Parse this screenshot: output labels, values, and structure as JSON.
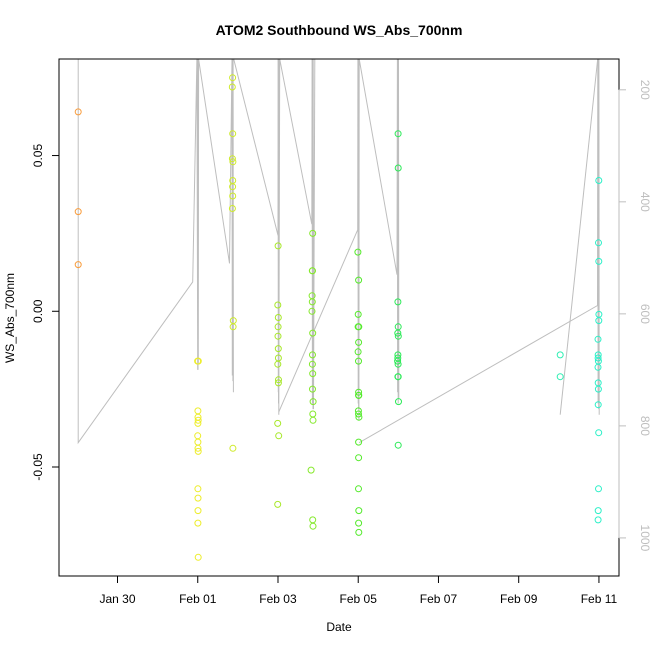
{
  "chart_data": {
    "type": "scatter",
    "title": "ATOM2 Southbound WS_Abs_700nm",
    "xlabel": "Date",
    "ylabel": "WS_Abs_700nm",
    "x_ticks": [
      {
        "date": "2017-01-30",
        "label": "Jan 30"
      },
      {
        "date": "2017-02-01",
        "label": "Feb 01"
      },
      {
        "date": "2017-02-03",
        "label": "Feb 03"
      },
      {
        "date": "2017-02-05",
        "label": "Feb 05"
      },
      {
        "date": "2017-02-07",
        "label": "Feb 07"
      },
      {
        "date": "2017-02-09",
        "label": "Feb 09"
      },
      {
        "date": "2017-02-11",
        "label": "Feb 11"
      }
    ],
    "xlim": [
      "2017-01-28T13:00",
      "2017-02-11T12:00"
    ],
    "ylim": [
      -0.085,
      0.081
    ],
    "y_ticks": [
      {
        "value": -0.05,
        "label": "-0.05"
      },
      {
        "value": 0.0,
        "label": "0.00"
      },
      {
        "value": 0.05,
        "label": "0.05"
      }
    ],
    "y2_ticks": [
      {
        "value": 200,
        "label": "200"
      },
      {
        "value": 400,
        "label": "400"
      },
      {
        "value": 600,
        "label": "600"
      },
      {
        "value": 800,
        "label": "800"
      },
      {
        "value": 1000,
        "label": "1000"
      }
    ],
    "y2lim": [
      1068,
      145
    ],
    "y2_color": "#bebebe",
    "grid": false,
    "points": [
      {
        "x": "2017-01-29T00:30",
        "y": 0.064
      },
      {
        "x": "2017-01-29T00:30",
        "y": 0.032
      },
      {
        "x": "2017-01-29T00:30",
        "y": 0.015
      },
      {
        "x": "2017-01-31T23:55",
        "y": -0.016
      },
      {
        "x": "2017-02-01T00:05",
        "y": -0.032
      },
      {
        "x": "2017-02-01T00:10",
        "y": -0.034
      },
      {
        "x": "2017-02-01T00:15",
        "y": -0.035
      },
      {
        "x": "2017-02-01T00:05",
        "y": -0.036
      },
      {
        "x": "2017-02-01T00:00",
        "y": -0.04
      },
      {
        "x": "2017-02-01T00:05",
        "y": -0.042
      },
      {
        "x": "2017-02-01T00:10",
        "y": -0.044
      },
      {
        "x": "2017-02-01T00:15",
        "y": -0.045
      },
      {
        "x": "2017-02-01T00:05",
        "y": -0.057
      },
      {
        "x": "2017-02-01T00:10",
        "y": -0.06
      },
      {
        "x": "2017-02-01T00:10",
        "y": -0.064
      },
      {
        "x": "2017-02-01T00:05",
        "y": -0.068
      },
      {
        "x": "2017-02-01T00:15",
        "y": -0.079
      },
      {
        "x": "2017-02-01T00:20",
        "y": -0.016
      },
      {
        "x": "2017-02-01T20:50",
        "y": 0.075
      },
      {
        "x": "2017-02-01T20:40",
        "y": 0.072
      },
      {
        "x": "2017-02-01T20:55",
        "y": 0.057
      },
      {
        "x": "2017-02-01T20:45",
        "y": 0.049
      },
      {
        "x": "2017-02-01T21:00",
        "y": 0.048
      },
      {
        "x": "2017-02-01T20:55",
        "y": 0.042
      },
      {
        "x": "2017-02-01T20:50",
        "y": 0.04
      },
      {
        "x": "2017-02-01T20:55",
        "y": 0.037
      },
      {
        "x": "2017-02-01T20:45",
        "y": 0.033
      },
      {
        "x": "2017-02-01T21:15",
        "y": -0.003
      },
      {
        "x": "2017-02-01T21:10",
        "y": -0.005
      },
      {
        "x": "2017-02-01T21:00",
        "y": -0.044
      },
      {
        "x": "2017-02-03T00:05",
        "y": 0.021
      },
      {
        "x": "2017-02-02T23:55",
        "y": 0.002
      },
      {
        "x": "2017-02-03T00:10",
        "y": -0.002
      },
      {
        "x": "2017-02-03T00:05",
        "y": -0.005
      },
      {
        "x": "2017-02-03T00:00",
        "y": -0.008
      },
      {
        "x": "2017-02-03T00:10",
        "y": -0.012
      },
      {
        "x": "2017-02-03T00:15",
        "y": -0.015
      },
      {
        "x": "2017-02-02T23:55",
        "y": -0.017
      },
      {
        "x": "2017-02-03T00:20",
        "y": -0.022
      },
      {
        "x": "2017-02-03T00:15",
        "y": -0.023
      },
      {
        "x": "2017-02-02T23:50",
        "y": -0.036
      },
      {
        "x": "2017-02-03T00:25",
        "y": -0.04
      },
      {
        "x": "2017-02-02T23:50",
        "y": -0.062
      },
      {
        "x": "2017-02-03T20:45",
        "y": 0.025
      },
      {
        "x": "2017-02-03T20:30",
        "y": 0.013
      },
      {
        "x": "2017-02-03T20:40",
        "y": 0.013
      },
      {
        "x": "2017-02-03T20:25",
        "y": 0.005
      },
      {
        "x": "2017-02-03T20:30",
        "y": 0.003
      },
      {
        "x": "2017-02-03T20:20",
        "y": 0.0
      },
      {
        "x": "2017-02-03T20:45",
        "y": -0.007
      },
      {
        "x": "2017-02-03T20:40",
        "y": -0.014
      },
      {
        "x": "2017-02-03T20:35",
        "y": -0.017
      },
      {
        "x": "2017-02-03T20:45",
        "y": -0.02
      },
      {
        "x": "2017-02-03T20:40",
        "y": -0.025
      },
      {
        "x": "2017-02-03T21:00",
        "y": -0.029
      },
      {
        "x": "2017-02-03T20:50",
        "y": -0.033
      },
      {
        "x": "2017-02-03T20:55",
        "y": -0.035
      },
      {
        "x": "2017-02-03T19:50",
        "y": -0.051
      },
      {
        "x": "2017-02-03T20:45",
        "y": -0.067
      },
      {
        "x": "2017-02-03T20:55",
        "y": -0.069
      },
      {
        "x": "2017-02-04T23:50",
        "y": 0.019
      },
      {
        "x": "2017-02-05T00:15",
        "y": 0.01
      },
      {
        "x": "2017-02-05T00:00",
        "y": -0.001
      },
      {
        "x": "2017-02-05T00:20",
        "y": -0.005
      },
      {
        "x": "2017-02-04T23:55",
        "y": -0.005
      },
      {
        "x": "2017-02-05T00:15",
        "y": -0.01
      },
      {
        "x": "2017-02-04T23:55",
        "y": -0.013
      },
      {
        "x": "2017-02-05T00:10",
        "y": -0.016
      },
      {
        "x": "2017-02-05T00:15",
        "y": -0.026
      },
      {
        "x": "2017-02-05T00:10",
        "y": -0.027
      },
      {
        "x": "2017-02-05T00:20",
        "y": -0.027
      },
      {
        "x": "2017-02-05T00:05",
        "y": -0.032
      },
      {
        "x": "2017-02-05T00:10",
        "y": -0.033
      },
      {
        "x": "2017-02-05T00:25",
        "y": -0.034
      },
      {
        "x": "2017-02-05T00:15",
        "y": -0.042
      },
      {
        "x": "2017-02-05T00:15",
        "y": -0.047
      },
      {
        "x": "2017-02-05T00:10",
        "y": -0.057
      },
      {
        "x": "2017-02-05T00:20",
        "y": -0.064
      },
      {
        "x": "2017-02-05T00:15",
        "y": -0.068
      },
      {
        "x": "2017-02-05T00:20",
        "y": -0.071
      },
      {
        "x": "2017-02-05T23:50",
        "y": 0.057
      },
      {
        "x": "2017-02-05T23:55",
        "y": 0.046
      },
      {
        "x": "2017-02-05T23:45",
        "y": 0.003
      },
      {
        "x": "2017-02-05T23:55",
        "y": -0.005
      },
      {
        "x": "2017-02-05T23:40",
        "y": -0.007
      },
      {
        "x": "2017-02-06T00:00",
        "y": -0.008
      },
      {
        "x": "2017-02-05T23:45",
        "y": -0.014
      },
      {
        "x": "2017-02-05T23:40",
        "y": -0.015
      },
      {
        "x": "2017-02-05T23:35",
        "y": -0.016
      },
      {
        "x": "2017-02-05T23:50",
        "y": -0.017
      },
      {
        "x": "2017-02-05T23:45",
        "y": -0.021
      },
      {
        "x": "2017-02-05T23:55",
        "y": -0.021
      },
      {
        "x": "2017-02-06T00:05",
        "y": -0.029
      },
      {
        "x": "2017-02-05T23:55",
        "y": -0.043
      },
      {
        "x": "2017-02-10T00:50",
        "y": -0.014
      },
      {
        "x": "2017-02-10T00:50",
        "y": -0.021
      },
      {
        "x": "2017-02-10T23:55",
        "y": 0.042
      },
      {
        "x": "2017-02-10T23:45",
        "y": 0.022
      },
      {
        "x": "2017-02-10T23:55",
        "y": 0.016
      },
      {
        "x": "2017-02-11T00:00",
        "y": -0.001
      },
      {
        "x": "2017-02-10T23:55",
        "y": -0.003
      },
      {
        "x": "2017-02-10T23:25",
        "y": -0.009
      },
      {
        "x": "2017-02-10T23:35",
        "y": -0.014
      },
      {
        "x": "2017-02-10T23:30",
        "y": -0.015
      },
      {
        "x": "2017-02-10T23:40",
        "y": -0.016
      },
      {
        "x": "2017-02-10T23:25",
        "y": -0.018
      },
      {
        "x": "2017-02-10T23:35",
        "y": -0.023
      },
      {
        "x": "2017-02-10T23:40",
        "y": -0.025
      },
      {
        "x": "2017-02-10T23:35",
        "y": -0.03
      },
      {
        "x": "2017-02-10T23:50",
        "y": -0.039
      },
      {
        "x": "2017-02-10T23:45",
        "y": -0.057
      },
      {
        "x": "2017-02-10T23:35",
        "y": -0.064
      },
      {
        "x": "2017-02-10T23:30",
        "y": -0.067
      }
    ],
    "profile_segments": [
      [
        [
          "2017-01-29T00:30",
          145
        ],
        [
          "2017-01-29T00:30",
          830
        ],
        [
          "2017-01-31T21:00",
          543
        ],
        [
          "2017-01-31T23:30",
          145
        ],
        [
          "2017-02-01T00:00",
          700
        ],
        [
          "2017-02-01T00:05",
          145
        ],
        [
          "2017-02-01T00:10",
          700
        ],
        [
          "2017-02-01T00:15",
          145
        ],
        [
          "2017-02-01T00:20",
          690
        ],
        [
          "2017-02-01T00:30",
          145
        ],
        [
          "2017-02-01T19:00",
          510
        ],
        [
          "2017-02-01T20:30",
          145
        ],
        [
          "2017-02-01T20:40",
          710
        ],
        [
          "2017-02-01T20:50",
          145
        ],
        [
          "2017-02-01T21:00",
          720
        ],
        [
          "2017-02-01T21:10",
          145
        ],
        [
          "2017-02-01T21:20",
          740
        ]
      ],
      [
        [
          "2017-02-01T21:30",
          145
        ],
        [
          "2017-02-03T00:00",
          460
        ],
        [
          "2017-02-03T00:05",
          145
        ],
        [
          "2017-02-03T00:10",
          740
        ],
        [
          "2017-02-03T00:15",
          145
        ],
        [
          "2017-02-03T00:20",
          760
        ],
        [
          "2017-02-03T00:25",
          145
        ],
        [
          "2017-02-03T00:30",
          780
        ],
        [
          "2017-02-03T01:00",
          145
        ],
        [
          "2017-02-03T20:15",
          440
        ],
        [
          "2017-02-03T20:25",
          145
        ],
        [
          "2017-02-03T20:35",
          760
        ],
        [
          "2017-02-03T20:45",
          145
        ],
        [
          "2017-02-03T20:55",
          770
        ],
        [
          "2017-02-03T21:05",
          145
        ],
        [
          "2017-02-03T21:15",
          770
        ],
        [
          "2017-02-03T22:00",
          145
        ]
      ],
      [
        [
          "2017-02-03T00:30",
          775
        ],
        [
          "2017-02-04T23:40",
          450
        ],
        [
          "2017-02-04T23:50",
          145
        ],
        [
          "2017-02-05T00:00",
          760
        ],
        [
          "2017-02-05T00:10",
          145
        ],
        [
          "2017-02-05T00:15",
          770
        ],
        [
          "2017-02-05T00:20",
          145
        ],
        [
          "2017-02-05T00:25",
          790
        ],
        [
          "2017-02-05T00:35",
          145
        ],
        [
          "2017-02-05T23:10",
          530
        ],
        [
          "2017-02-05T23:25",
          145
        ],
        [
          "2017-02-05T23:35",
          740
        ],
        [
          "2017-02-05T23:45",
          145
        ],
        [
          "2017-02-05T23:55",
          760
        ],
        [
          "2017-02-06T00:05",
          145
        ],
        [
          "2017-02-06T00:15",
          750
        ]
      ],
      [
        [
          "2017-02-05T00:30",
          830
        ],
        [
          "2017-02-10T23:10",
          585
        ],
        [
          "2017-02-10T23:20",
          145
        ],
        [
          "2017-02-10T23:30",
          760
        ],
        [
          "2017-02-10T23:40",
          145
        ],
        [
          "2017-02-10T23:50",
          770
        ],
        [
          "2017-02-11T00:00",
          145
        ],
        [
          "2017-02-11T00:10",
          780
        ]
      ],
      [
        [
          "2017-02-10T00:50",
          780
        ],
        [
          "2017-02-10T23:15",
          145
        ]
      ]
    ],
    "color_scale": [
      {
        "date": "2017-01-29T00:00",
        "color": "#f99b3c"
      },
      {
        "date": "2017-02-01T00:00",
        "color": "#eded2a"
      },
      {
        "date": "2017-02-03T00:00",
        "color": "#a8e82a"
      },
      {
        "date": "2017-02-05T00:00",
        "color": "#55ea2c"
      },
      {
        "date": "2017-02-06T00:00",
        "color": "#2cea58"
      },
      {
        "date": "2017-02-11T00:00",
        "color": "#2cf0c8"
      }
    ]
  }
}
